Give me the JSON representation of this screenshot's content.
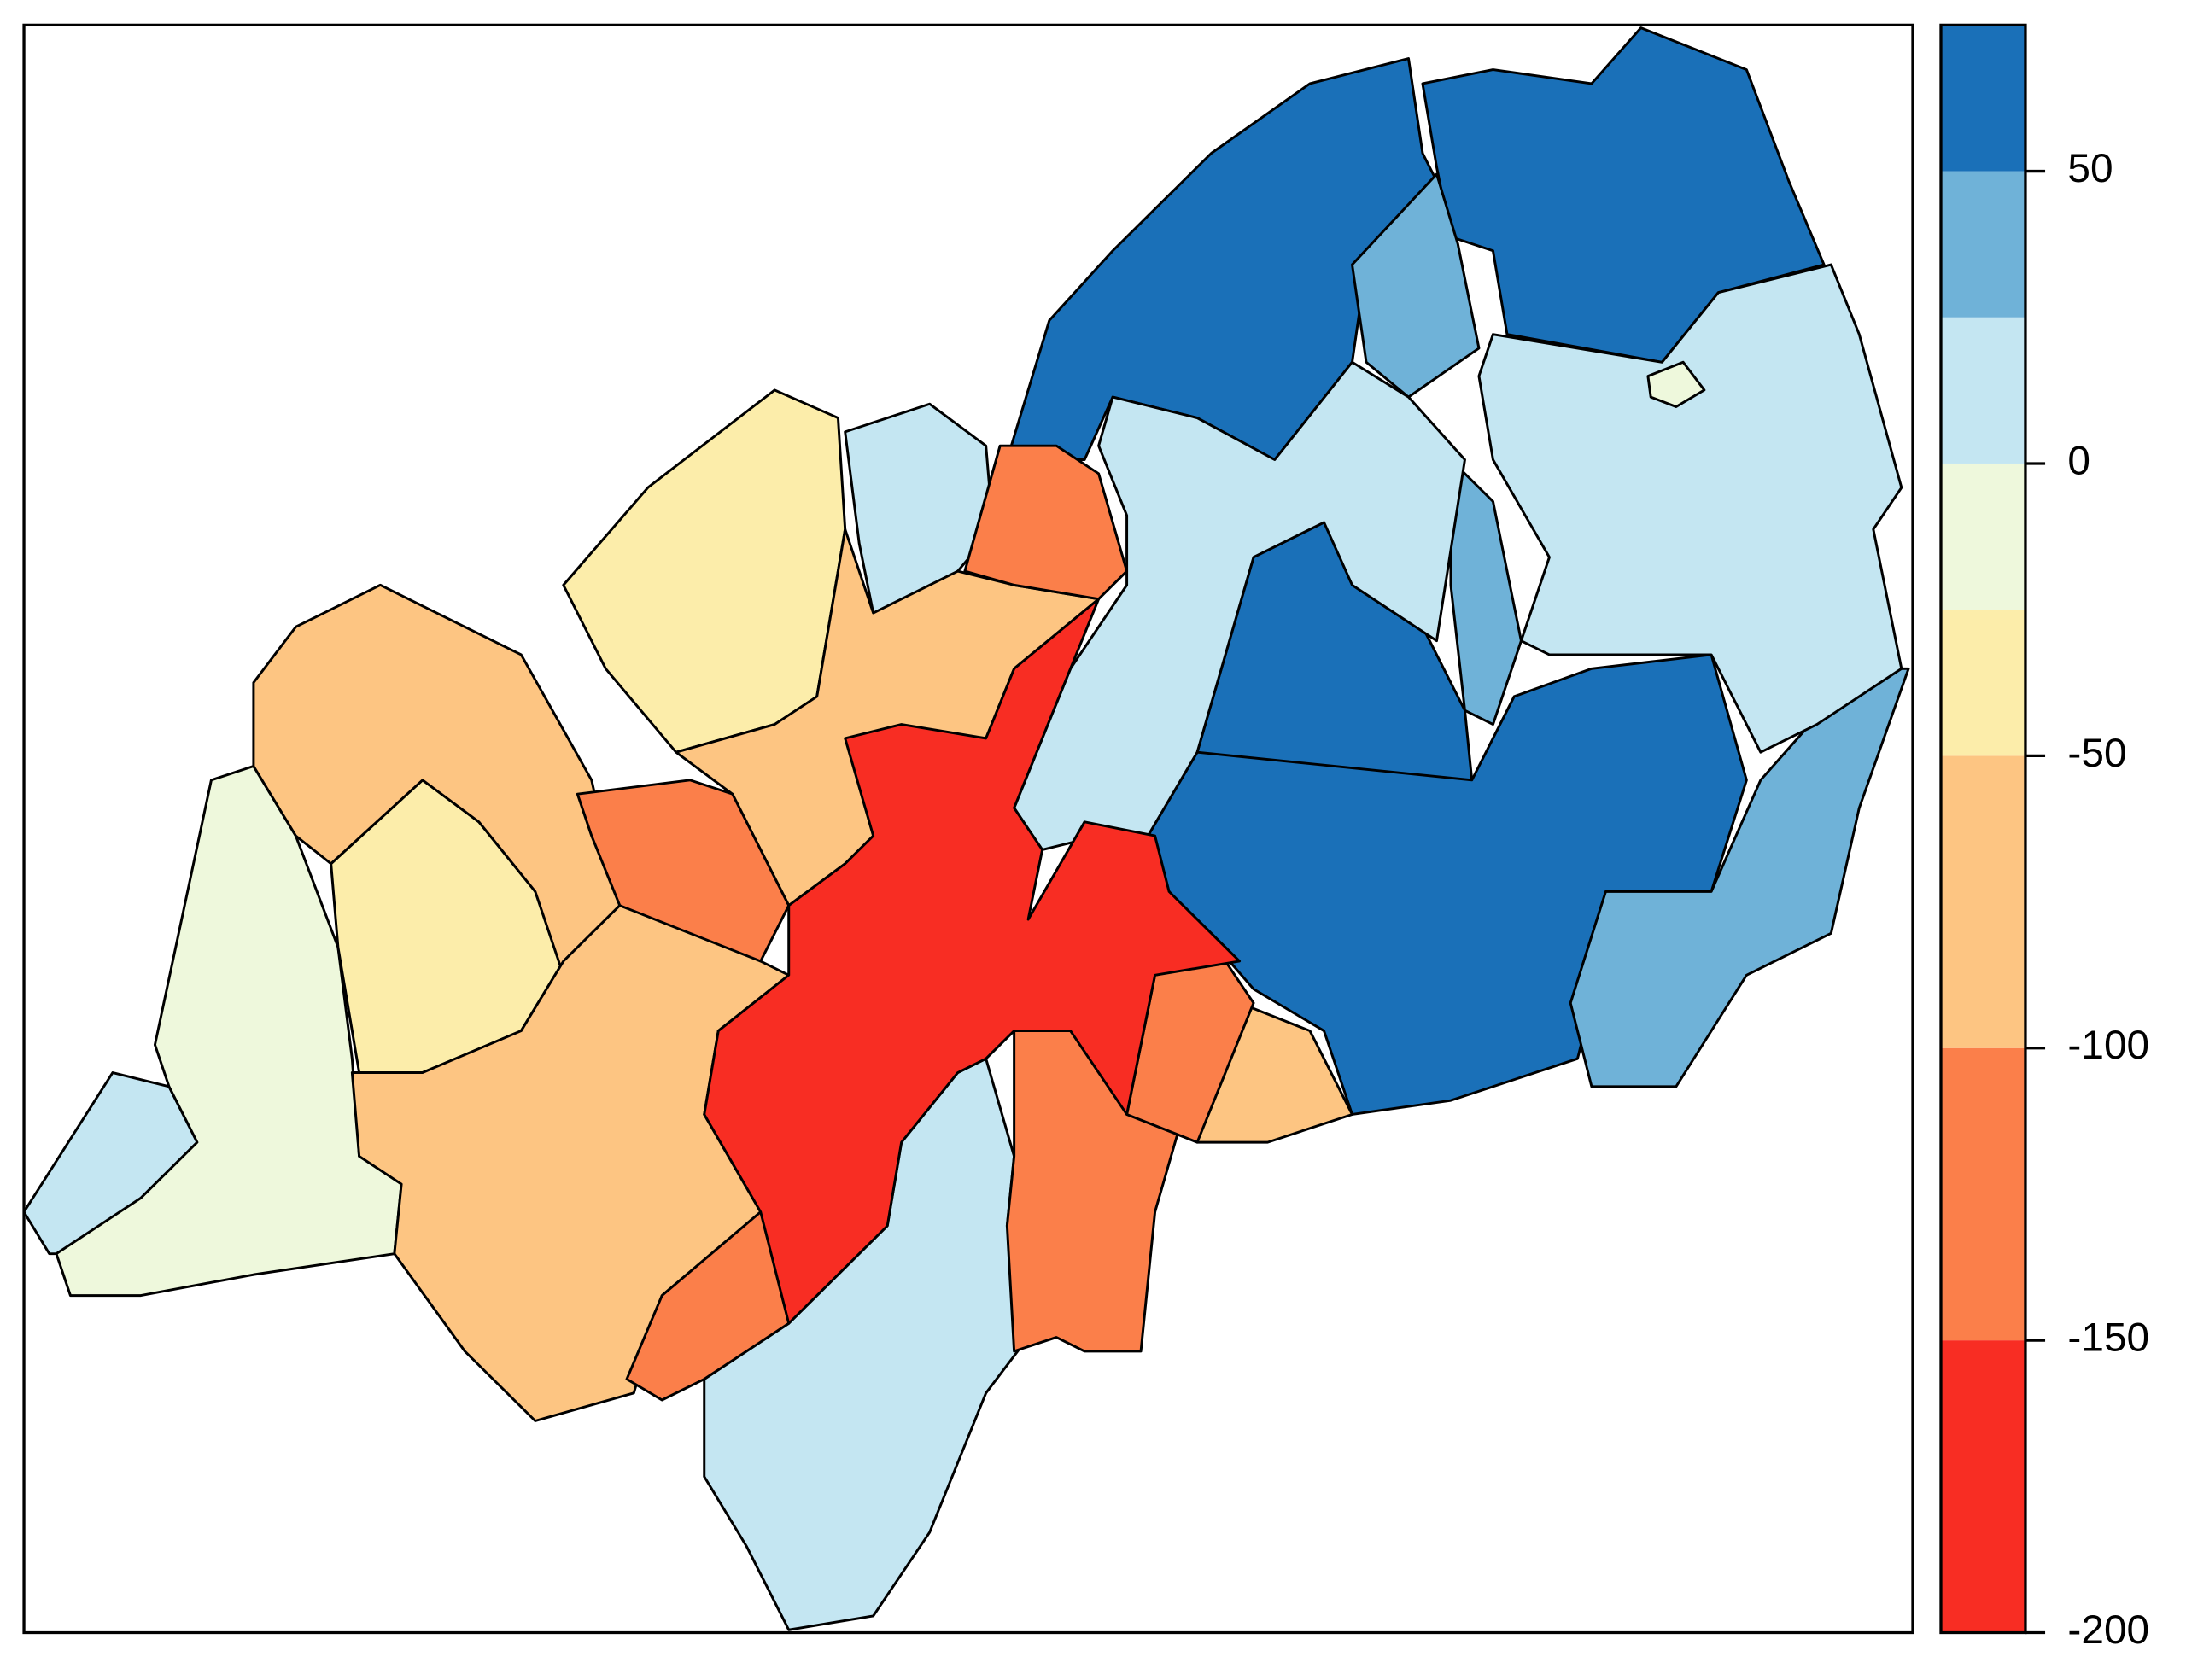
{
  "chart_data": {
    "type": "choropleth",
    "values": [
      62,
      62,
      37,
      62,
      62,
      37,
      37,
      12,
      12,
      12,
      12,
      12,
      -12,
      -37,
      -37,
      -75,
      -75,
      -75,
      -75,
      -125,
      -125,
      -125,
      -125,
      -125,
      -175,
      -12
    ],
    "colorbar": {
      "breaks": [
        -200,
        -150,
        -100,
        -50,
        -25,
        0,
        25,
        50,
        75
      ],
      "colors": [
        "#f82d23",
        "#fb7f4a",
        "#fdc582",
        "#fcedaa",
        "#eef8dc",
        "#c4e6f2",
        "#6fb2d8",
        "#1a70b8"
      ],
      "clim": [
        -200,
        75
      ],
      "ticks": [
        -200,
        -150,
        -100,
        -50,
        0,
        50
      ]
    }
  }
}
